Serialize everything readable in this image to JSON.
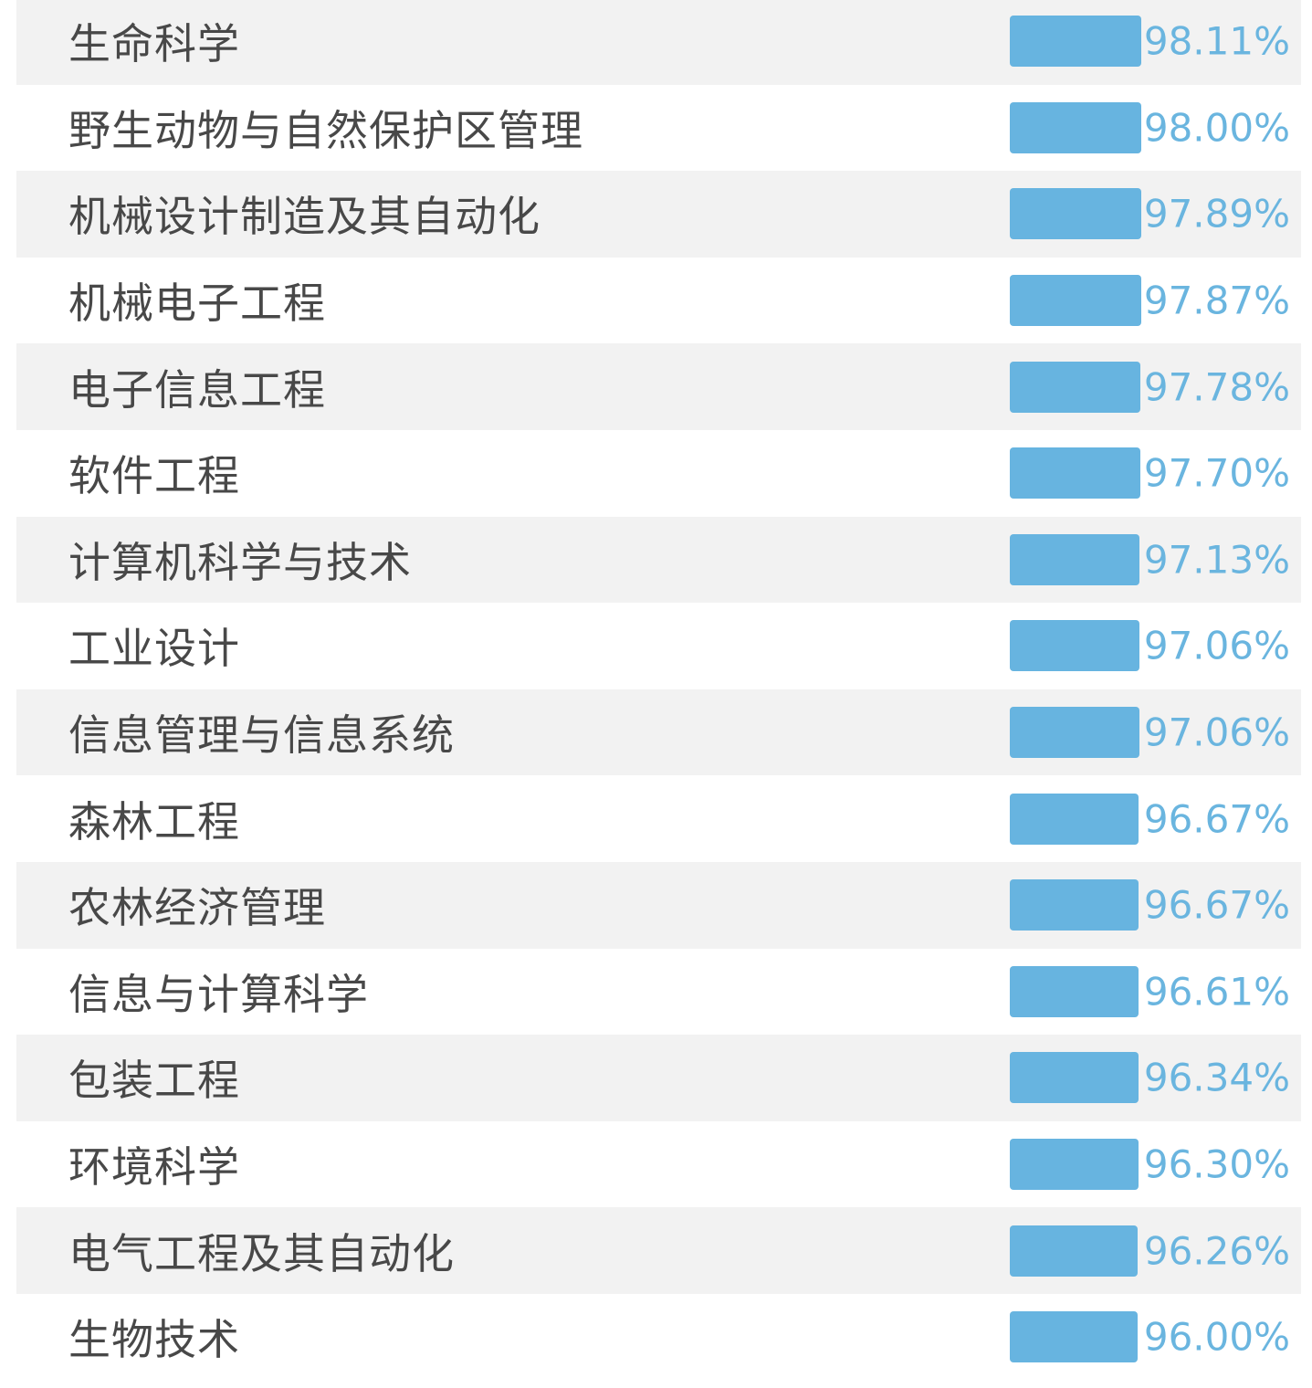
{
  "chart_data": {
    "type": "bar",
    "orientation": "horizontal",
    "categories": [
      "生命科学",
      "野生动物与自然保护区管理",
      "机械设计制造及其自动化",
      "机械电子工程",
      "电子信息工程",
      "软件工程",
      "计算机科学与技术",
      "工业设计",
      "信息管理与信息系统",
      "森林工程",
      "农林经济管理",
      "信息与计算科学",
      "包装工程",
      "环境科学",
      "电气工程及其自动化",
      "生物技术"
    ],
    "values": [
      98.11,
      98.0,
      97.89,
      97.87,
      97.78,
      97.7,
      97.13,
      97.06,
      97.06,
      96.67,
      96.67,
      96.61,
      96.34,
      96.3,
      96.26,
      96.0
    ],
    "value_labels": [
      "98.11%",
      "98.00%",
      "97.89%",
      "97.87%",
      "97.78%",
      "97.70%",
      "97.13%",
      "97.06%",
      "97.06%",
      "96.67%",
      "96.67%",
      "96.61%",
      "96.34%",
      "96.30%",
      "96.26%",
      "96.00%"
    ],
    "bar_color": "#67b4e0",
    "label_color": "#6ab5df",
    "row_shade_color": "#f2f2f2"
  }
}
